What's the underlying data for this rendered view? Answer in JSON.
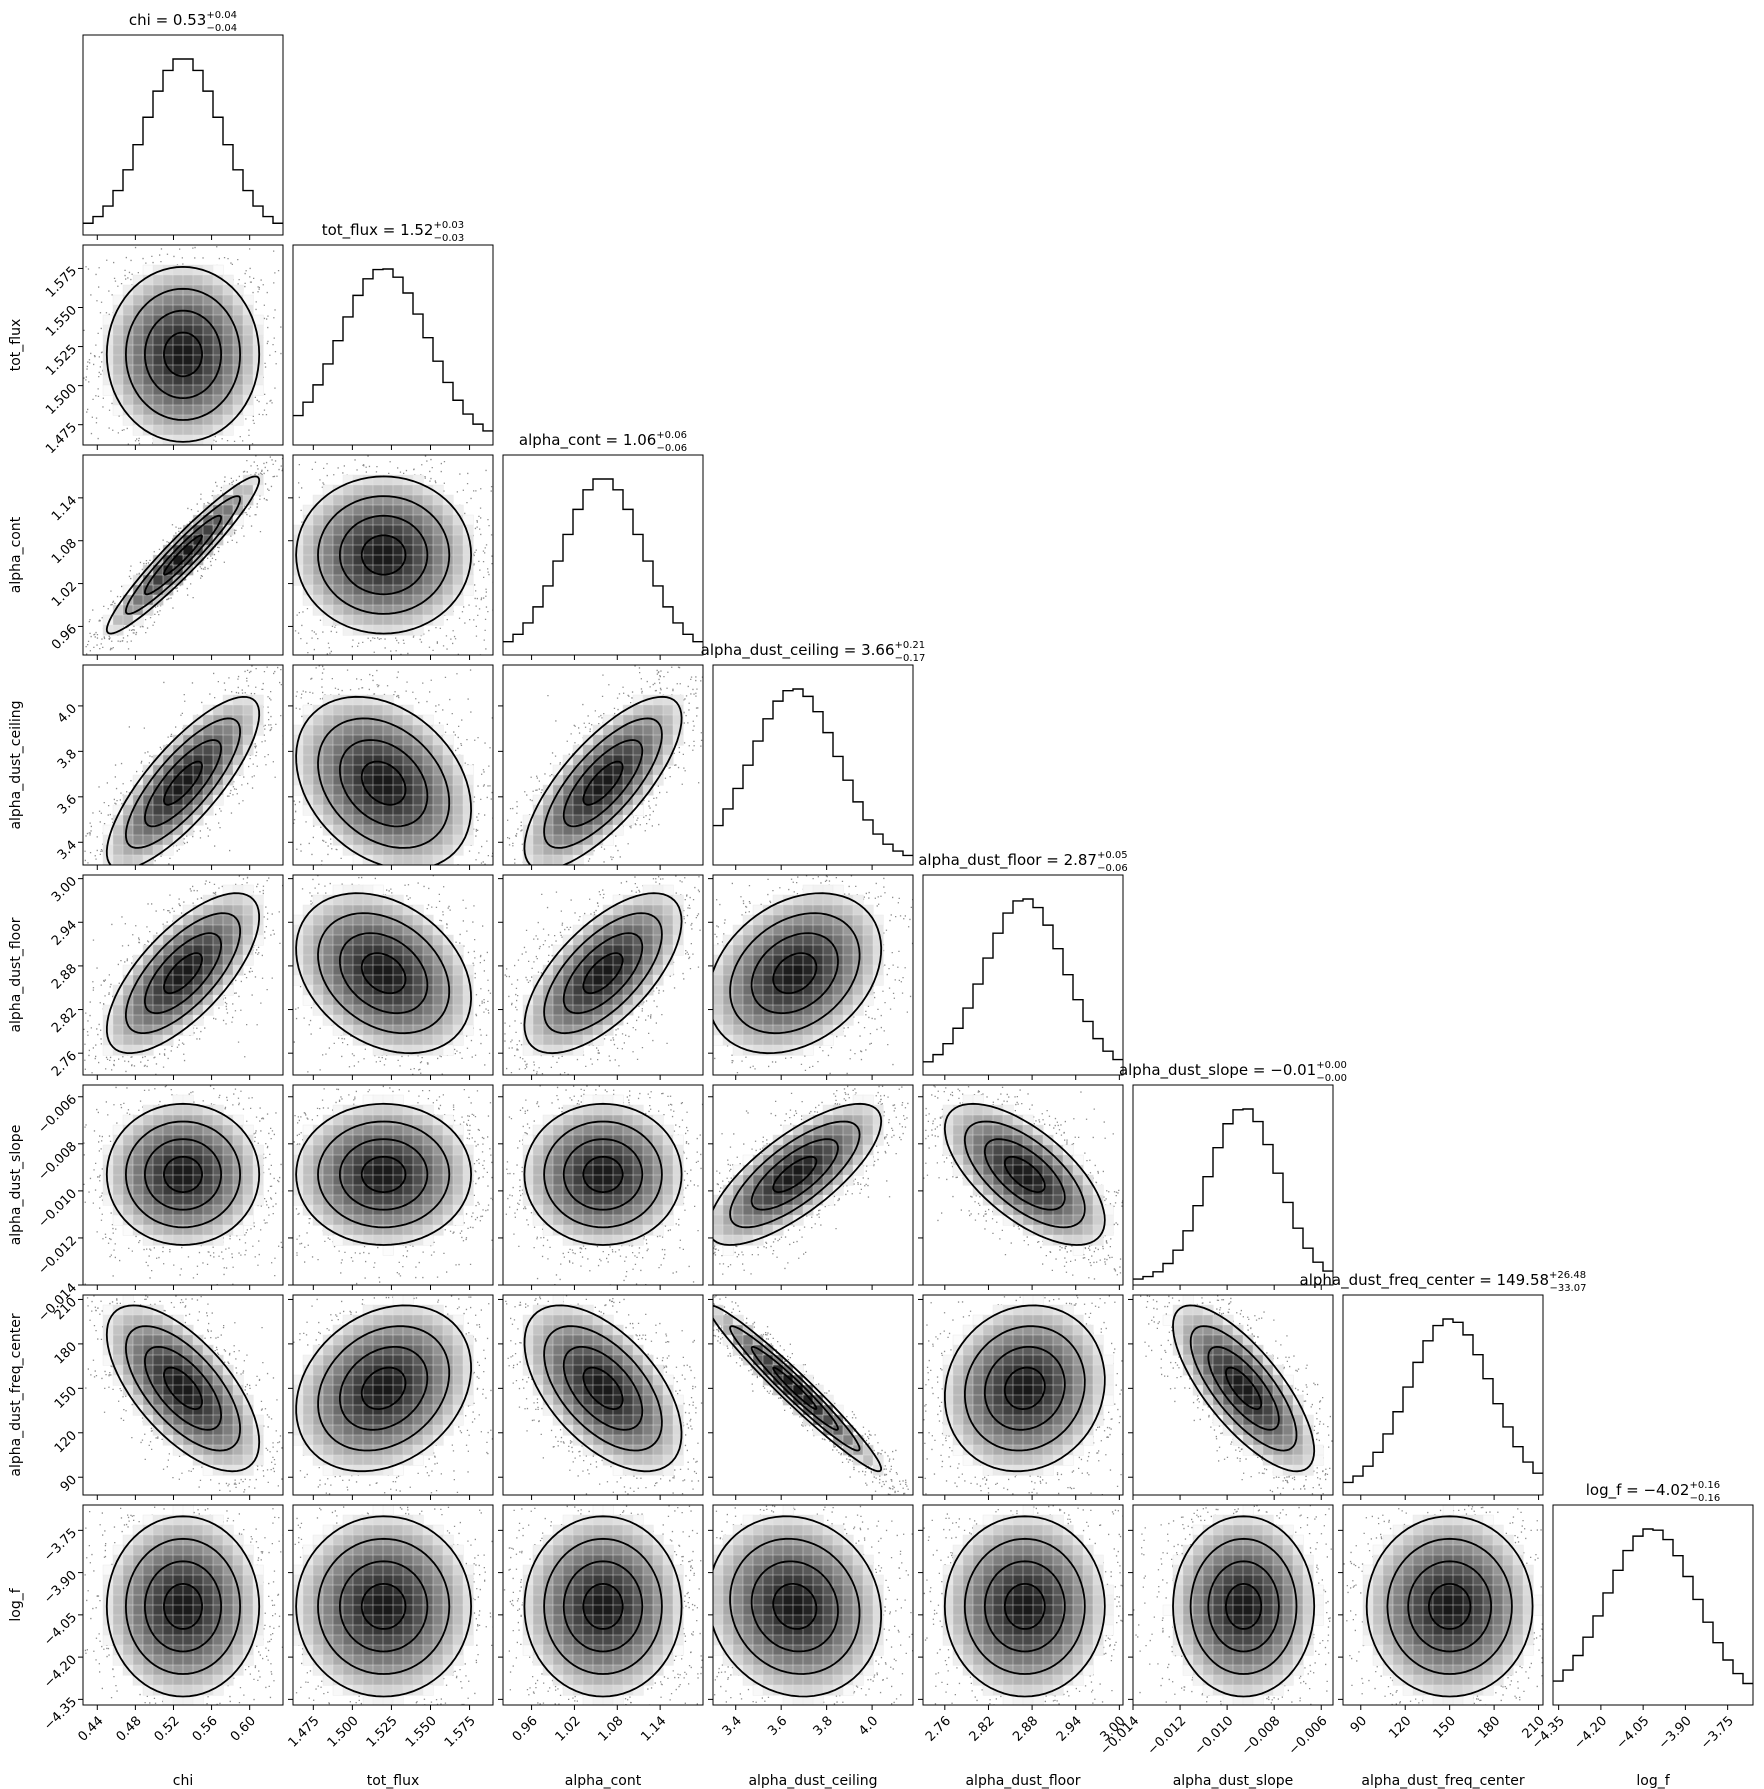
{
  "chart_data": {
    "type": "corner",
    "parameters": [
      {
        "name": "chi",
        "label": "chi",
        "median": "0.53",
        "plus": "0.04",
        "minus": "0.04",
        "range": [
          0.425,
          0.635
        ],
        "mean": 0.53,
        "sd": 0.04,
        "ticks": [
          {
            "v": 0.44,
            "label": "0.44"
          },
          {
            "v": 0.48,
            "label": "0.48"
          },
          {
            "v": 0.52,
            "label": "0.52"
          },
          {
            "v": 0.56,
            "label": "0.56"
          },
          {
            "v": 0.6,
            "label": "0.60"
          }
        ]
      },
      {
        "name": "tot_flux",
        "label": "tot_flux",
        "median": "1.52",
        "plus": "0.03",
        "minus": "0.03",
        "range": [
          1.462,
          1.59
        ],
        "mean": 1.52,
        "sd": 0.028,
        "ticks": [
          {
            "v": 1.475,
            "label": "1.475"
          },
          {
            "v": 1.5,
            "label": "1.500"
          },
          {
            "v": 1.525,
            "label": "1.525"
          },
          {
            "v": 1.55,
            "label": "1.550"
          },
          {
            "v": 1.575,
            "label": "1.575"
          }
        ]
      },
      {
        "name": "alpha_cont",
        "label": "alpha_cont",
        "median": "1.06",
        "plus": "0.06",
        "minus": "0.06",
        "range": [
          0.92,
          1.2
        ],
        "mean": 1.06,
        "sd": 0.055,
        "ticks": [
          {
            "v": 0.96,
            "label": "0.96"
          },
          {
            "v": 1.02,
            "label": "1.02"
          },
          {
            "v": 1.08,
            "label": "1.08"
          },
          {
            "v": 1.14,
            "label": "1.14"
          }
        ]
      },
      {
        "name": "alpha_dust_ceiling",
        "label": "alpha_dust_ceiling",
        "median": "3.66",
        "plus": "0.21",
        "minus": "0.17",
        "range": [
          3.3,
          4.18
        ],
        "mean": 3.66,
        "sd": 0.19,
        "ticks": [
          {
            "v": 3.4,
            "label": "3.4"
          },
          {
            "v": 3.6,
            "label": "3.6"
          },
          {
            "v": 3.8,
            "label": "3.8"
          },
          {
            "v": 4.0,
            "label": "4.0"
          }
        ]
      },
      {
        "name": "alpha_dust_floor",
        "label": "alpha_dust_floor",
        "median": "2.87",
        "plus": "0.05",
        "minus": "0.06",
        "range": [
          2.73,
          3.005
        ],
        "mean": 2.87,
        "sd": 0.055,
        "ticks": [
          {
            "v": 2.76,
            "label": "2.76"
          },
          {
            "v": 2.82,
            "label": "2.82"
          },
          {
            "v": 2.88,
            "label": "2.88"
          },
          {
            "v": 2.94,
            "label": "2.94"
          },
          {
            "v": 3.0,
            "label": "3.00"
          }
        ]
      },
      {
        "name": "alpha_dust_slope",
        "label": "alpha_dust_slope",
        "median": "−0.01",
        "plus": "0.00",
        "minus": "0.00",
        "range": [
          -0.014,
          -0.0055
        ],
        "mean": -0.0093,
        "sd": 0.0015,
        "ticks": [
          {
            "v": -0.014,
            "label": "−0.014"
          },
          {
            "v": -0.012,
            "label": "−0.012"
          },
          {
            "v": -0.01,
            "label": "−0.010"
          },
          {
            "v": -0.008,
            "label": "−0.008"
          },
          {
            "v": -0.006,
            "label": "−0.006"
          }
        ]
      },
      {
        "name": "alpha_dust_freq_center",
        "label": "alpha_dust_freq_center",
        "median": "149.58",
        "plus": "26.48",
        "minus": "33.07",
        "range": [
          78,
          213
        ],
        "mean": 150,
        "sd": 28,
        "ticks": [
          {
            "v": 90,
            "label": "90"
          },
          {
            "v": 120,
            "label": "120"
          },
          {
            "v": 150,
            "label": "150"
          },
          {
            "v": 180,
            "label": "180"
          },
          {
            "v": 210,
            "label": "210"
          }
        ]
      },
      {
        "name": "log_f",
        "label": "log_f",
        "median": "−4.02",
        "plus": "0.16",
        "minus": "0.16",
        "range": [
          -4.37,
          -3.66
        ],
        "mean": -4.02,
        "sd": 0.16,
        "ticks": [
          {
            "v": -4.35,
            "label": "−4.35"
          },
          {
            "v": -4.2,
            "label": "−4.20"
          },
          {
            "v": -4.05,
            "label": "−4.05"
          },
          {
            "v": -3.9,
            "label": "−3.90"
          },
          {
            "v": -3.75,
            "label": "−3.75"
          }
        ]
      }
    ],
    "correlations": [
      [
        "alpha_cont",
        "chi",
        0.95
      ],
      [
        "alpha_dust_ceiling",
        "chi",
        0.8
      ],
      [
        "alpha_dust_ceiling",
        "tot_flux",
        -0.3
      ],
      [
        "alpha_dust_ceiling",
        "alpha_cont",
        0.75
      ],
      [
        "alpha_dust_floor",
        "chi",
        0.7
      ],
      [
        "alpha_dust_floor",
        "tot_flux",
        -0.3
      ],
      [
        "alpha_dust_floor",
        "alpha_cont",
        0.65
      ],
      [
        "alpha_dust_floor",
        "alpha_dust_ceiling",
        0.3
      ],
      [
        "alpha_dust_slope",
        "alpha_dust_ceiling",
        0.75
      ],
      [
        "alpha_dust_slope",
        "alpha_dust_floor",
        -0.65
      ],
      [
        "alpha_dust_freq_center",
        "chi",
        -0.65
      ],
      [
        "alpha_dust_freq_center",
        "tot_flux",
        0.25
      ],
      [
        "alpha_dust_freq_center",
        "alpha_cont",
        -0.55
      ],
      [
        "alpha_dust_freq_center",
        "alpha_dust_ceiling",
        -0.97
      ],
      [
        "alpha_dust_freq_center",
        "alpha_dust_floor",
        0.1
      ],
      [
        "alpha_dust_freq_center",
        "alpha_dust_slope",
        -0.75
      ],
      [
        "log_f",
        "alpha_dust_ceiling",
        -0.1
      ]
    ],
    "histogram_bins": 20,
    "hist2d_bins": 20,
    "contour_levels": [
      0.118,
      0.393,
      0.675,
      0.865
    ],
    "colors": {
      "line": "#000000",
      "background": "#ffffff"
    }
  }
}
